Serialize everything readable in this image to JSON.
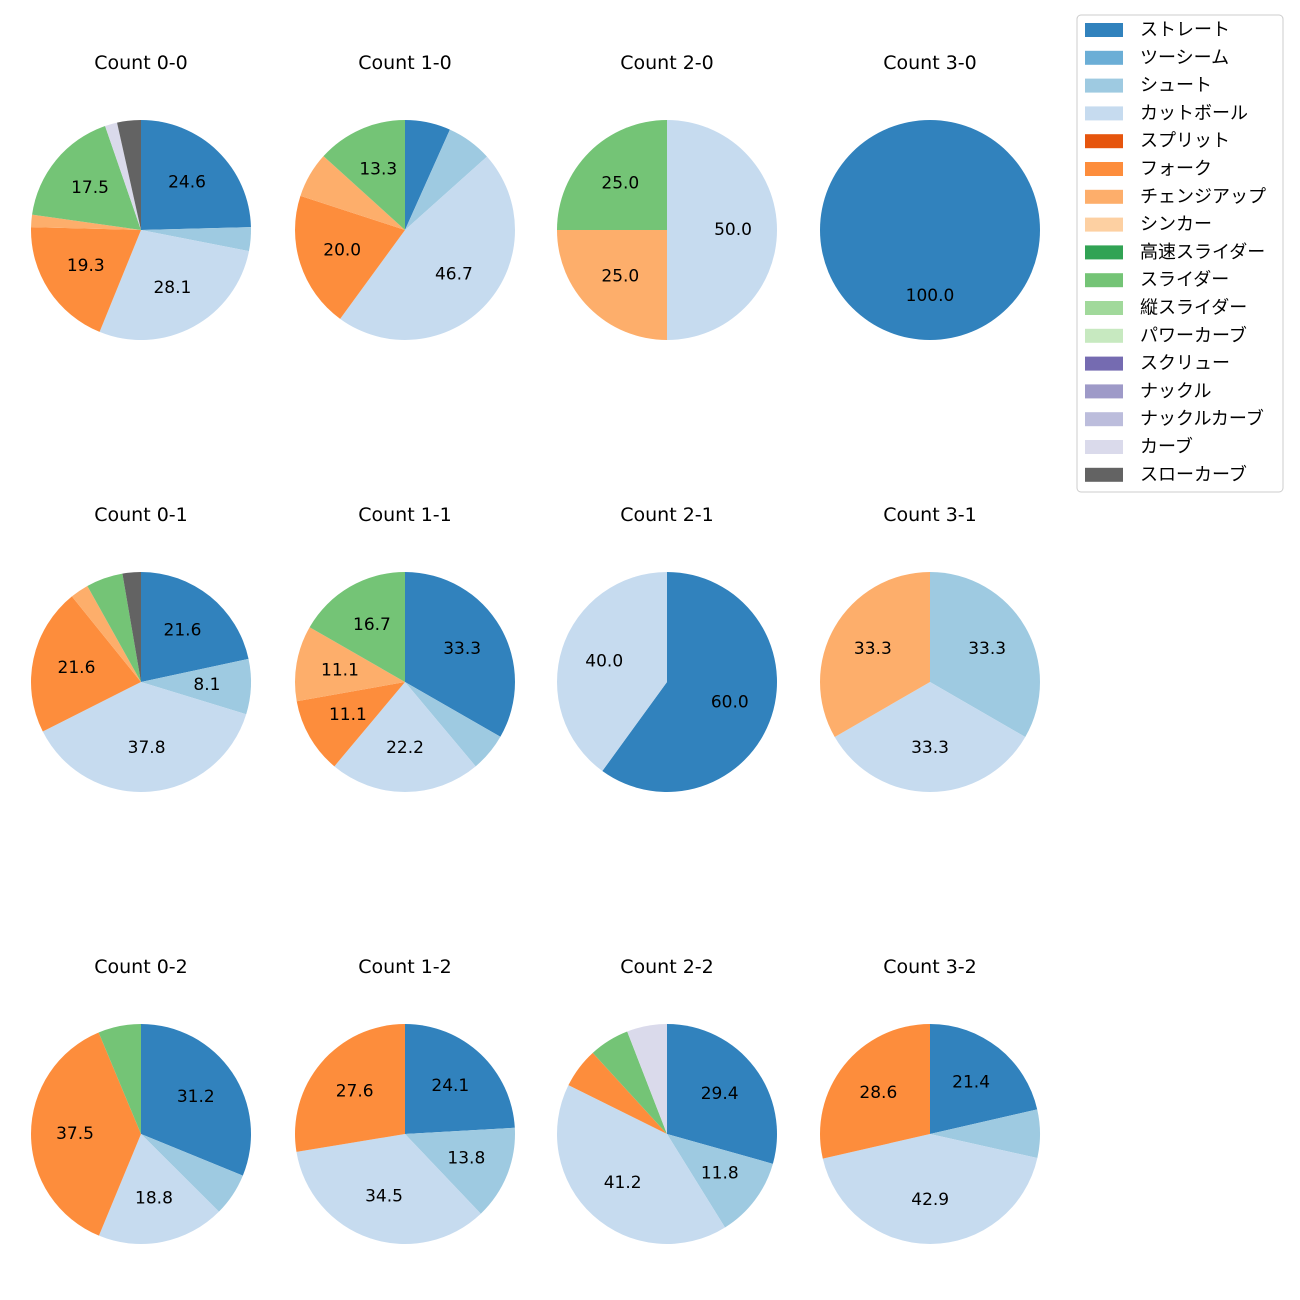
{
  "chart_data": {
    "type": "pie",
    "legend_position": "top-right",
    "categories": [
      {
        "name": "ストレート",
        "color": "#3182bd"
      },
      {
        "name": "ツーシーム",
        "color": "#6baed6"
      },
      {
        "name": "シュート",
        "color": "#9ecae1"
      },
      {
        "name": "カットボール",
        "color": "#c6dbef"
      },
      {
        "name": "スプリット",
        "color": "#e6550d"
      },
      {
        "name": "フォーク",
        "color": "#fd8d3c"
      },
      {
        "name": "チェンジアップ",
        "color": "#fdae6b"
      },
      {
        "name": "シンカー",
        "color": "#fdd0a2"
      },
      {
        "name": "高速スライダー",
        "color": "#31a354"
      },
      {
        "name": "スライダー",
        "color": "#74c476"
      },
      {
        "name": "縦スライダー",
        "color": "#a1d99b"
      },
      {
        "name": "パワーカーブ",
        "color": "#c7e9c0"
      },
      {
        "name": "スクリュー",
        "color": "#756bb1"
      },
      {
        "name": "ナックル",
        "color": "#9e9ac8"
      },
      {
        "name": "ナックルカーブ",
        "color": "#bcbddc"
      },
      {
        "name": "カーブ",
        "color": "#dadaeb"
      },
      {
        "name": "スローカーブ",
        "color": "#636363"
      }
    ],
    "pies": [
      {
        "title": "Count 0-0",
        "slices": [
          {
            "category": "ストレート",
            "value": 24.6,
            "label": "24.6"
          },
          {
            "category": "シュート",
            "value": 3.5
          },
          {
            "category": "カットボール",
            "value": 28.1,
            "label": "28.1"
          },
          {
            "category": "フォーク",
            "value": 19.3,
            "label": "19.3"
          },
          {
            "category": "チェンジアップ",
            "value": 1.8
          },
          {
            "category": "スライダー",
            "value": 17.5,
            "label": "17.5"
          },
          {
            "category": "カーブ",
            "value": 1.8
          },
          {
            "category": "スローカーブ",
            "value": 3.5
          }
        ]
      },
      {
        "title": "Count 1-0",
        "slices": [
          {
            "category": "ストレート",
            "value": 6.7
          },
          {
            "category": "シュート",
            "value": 6.7
          },
          {
            "category": "カットボール",
            "value": 46.7,
            "label": "46.7"
          },
          {
            "category": "フォーク",
            "value": 20.0,
            "label": "20.0"
          },
          {
            "category": "チェンジアップ",
            "value": 6.7
          },
          {
            "category": "スライダー",
            "value": 13.3,
            "label": "13.3"
          }
        ]
      },
      {
        "title": "Count 2-0",
        "slices": [
          {
            "category": "カットボール",
            "value": 50.0,
            "label": "50.0"
          },
          {
            "category": "チェンジアップ",
            "value": 25.0,
            "label": "25.0"
          },
          {
            "category": "スライダー",
            "value": 25.0,
            "label": "25.0"
          }
        ]
      },
      {
        "title": "Count 3-0",
        "slices": [
          {
            "category": "ストレート",
            "value": 100.0,
            "label": "100.0"
          }
        ]
      },
      {
        "title": "Count 0-1",
        "slices": [
          {
            "category": "ストレート",
            "value": 21.6,
            "label": "21.6"
          },
          {
            "category": "シュート",
            "value": 8.1,
            "label": "8.1"
          },
          {
            "category": "カットボール",
            "value": 37.8,
            "label": "37.8"
          },
          {
            "category": "フォーク",
            "value": 21.6,
            "label": "21.6"
          },
          {
            "category": "チェンジアップ",
            "value": 2.7
          },
          {
            "category": "スライダー",
            "value": 5.4
          },
          {
            "category": "スローカーブ",
            "value": 2.7
          }
        ]
      },
      {
        "title": "Count 1-1",
        "slices": [
          {
            "category": "ストレート",
            "value": 33.3,
            "label": "33.3"
          },
          {
            "category": "シュート",
            "value": 5.6
          },
          {
            "category": "カットボール",
            "value": 22.2,
            "label": "22.2"
          },
          {
            "category": "フォーク",
            "value": 11.1,
            "label": "11.1"
          },
          {
            "category": "チェンジアップ",
            "value": 11.1,
            "label": "11.1"
          },
          {
            "category": "スライダー",
            "value": 16.7,
            "label": "16.7"
          }
        ]
      },
      {
        "title": "Count 2-1",
        "slices": [
          {
            "category": "ストレート",
            "value": 60.0,
            "label": "60.0"
          },
          {
            "category": "カットボール",
            "value": 40.0,
            "label": "40.0"
          }
        ]
      },
      {
        "title": "Count 3-1",
        "slices": [
          {
            "category": "シュート",
            "value": 33.3,
            "label": "33.3"
          },
          {
            "category": "カットボール",
            "value": 33.3,
            "label": "33.3"
          },
          {
            "category": "チェンジアップ",
            "value": 33.3,
            "label": "33.3"
          }
        ]
      },
      {
        "title": "Count 0-2",
        "slices": [
          {
            "category": "ストレート",
            "value": 31.2,
            "label": "31.2"
          },
          {
            "category": "シュート",
            "value": 6.3
          },
          {
            "category": "カットボール",
            "value": 18.8,
            "label": "18.8"
          },
          {
            "category": "フォーク",
            "value": 37.5,
            "label": "37.5"
          },
          {
            "category": "スライダー",
            "value": 6.3
          }
        ]
      },
      {
        "title": "Count 1-2",
        "slices": [
          {
            "category": "ストレート",
            "value": 24.1,
            "label": "24.1"
          },
          {
            "category": "シュート",
            "value": 13.8,
            "label": "13.8"
          },
          {
            "category": "カットボール",
            "value": 34.5,
            "label": "34.5"
          },
          {
            "category": "フォーク",
            "value": 27.6,
            "label": "27.6"
          }
        ]
      },
      {
        "title": "Count 2-2",
        "slices": [
          {
            "category": "ストレート",
            "value": 29.4,
            "label": "29.4"
          },
          {
            "category": "シュート",
            "value": 11.8,
            "label": "11.8"
          },
          {
            "category": "カットボール",
            "value": 41.2,
            "label": "41.2"
          },
          {
            "category": "フォーク",
            "value": 5.9
          },
          {
            "category": "スライダー",
            "value": 5.9
          },
          {
            "category": "カーブ",
            "value": 5.9
          }
        ]
      },
      {
        "title": "Count 3-2",
        "slices": [
          {
            "category": "ストレート",
            "value": 21.4,
            "label": "21.4"
          },
          {
            "category": "シュート",
            "value": 7.1
          },
          {
            "category": "カットボール",
            "value": 42.9,
            "label": "42.9"
          },
          {
            "category": "フォーク",
            "value": 28.6,
            "label": "28.6"
          }
        ]
      }
    ]
  }
}
